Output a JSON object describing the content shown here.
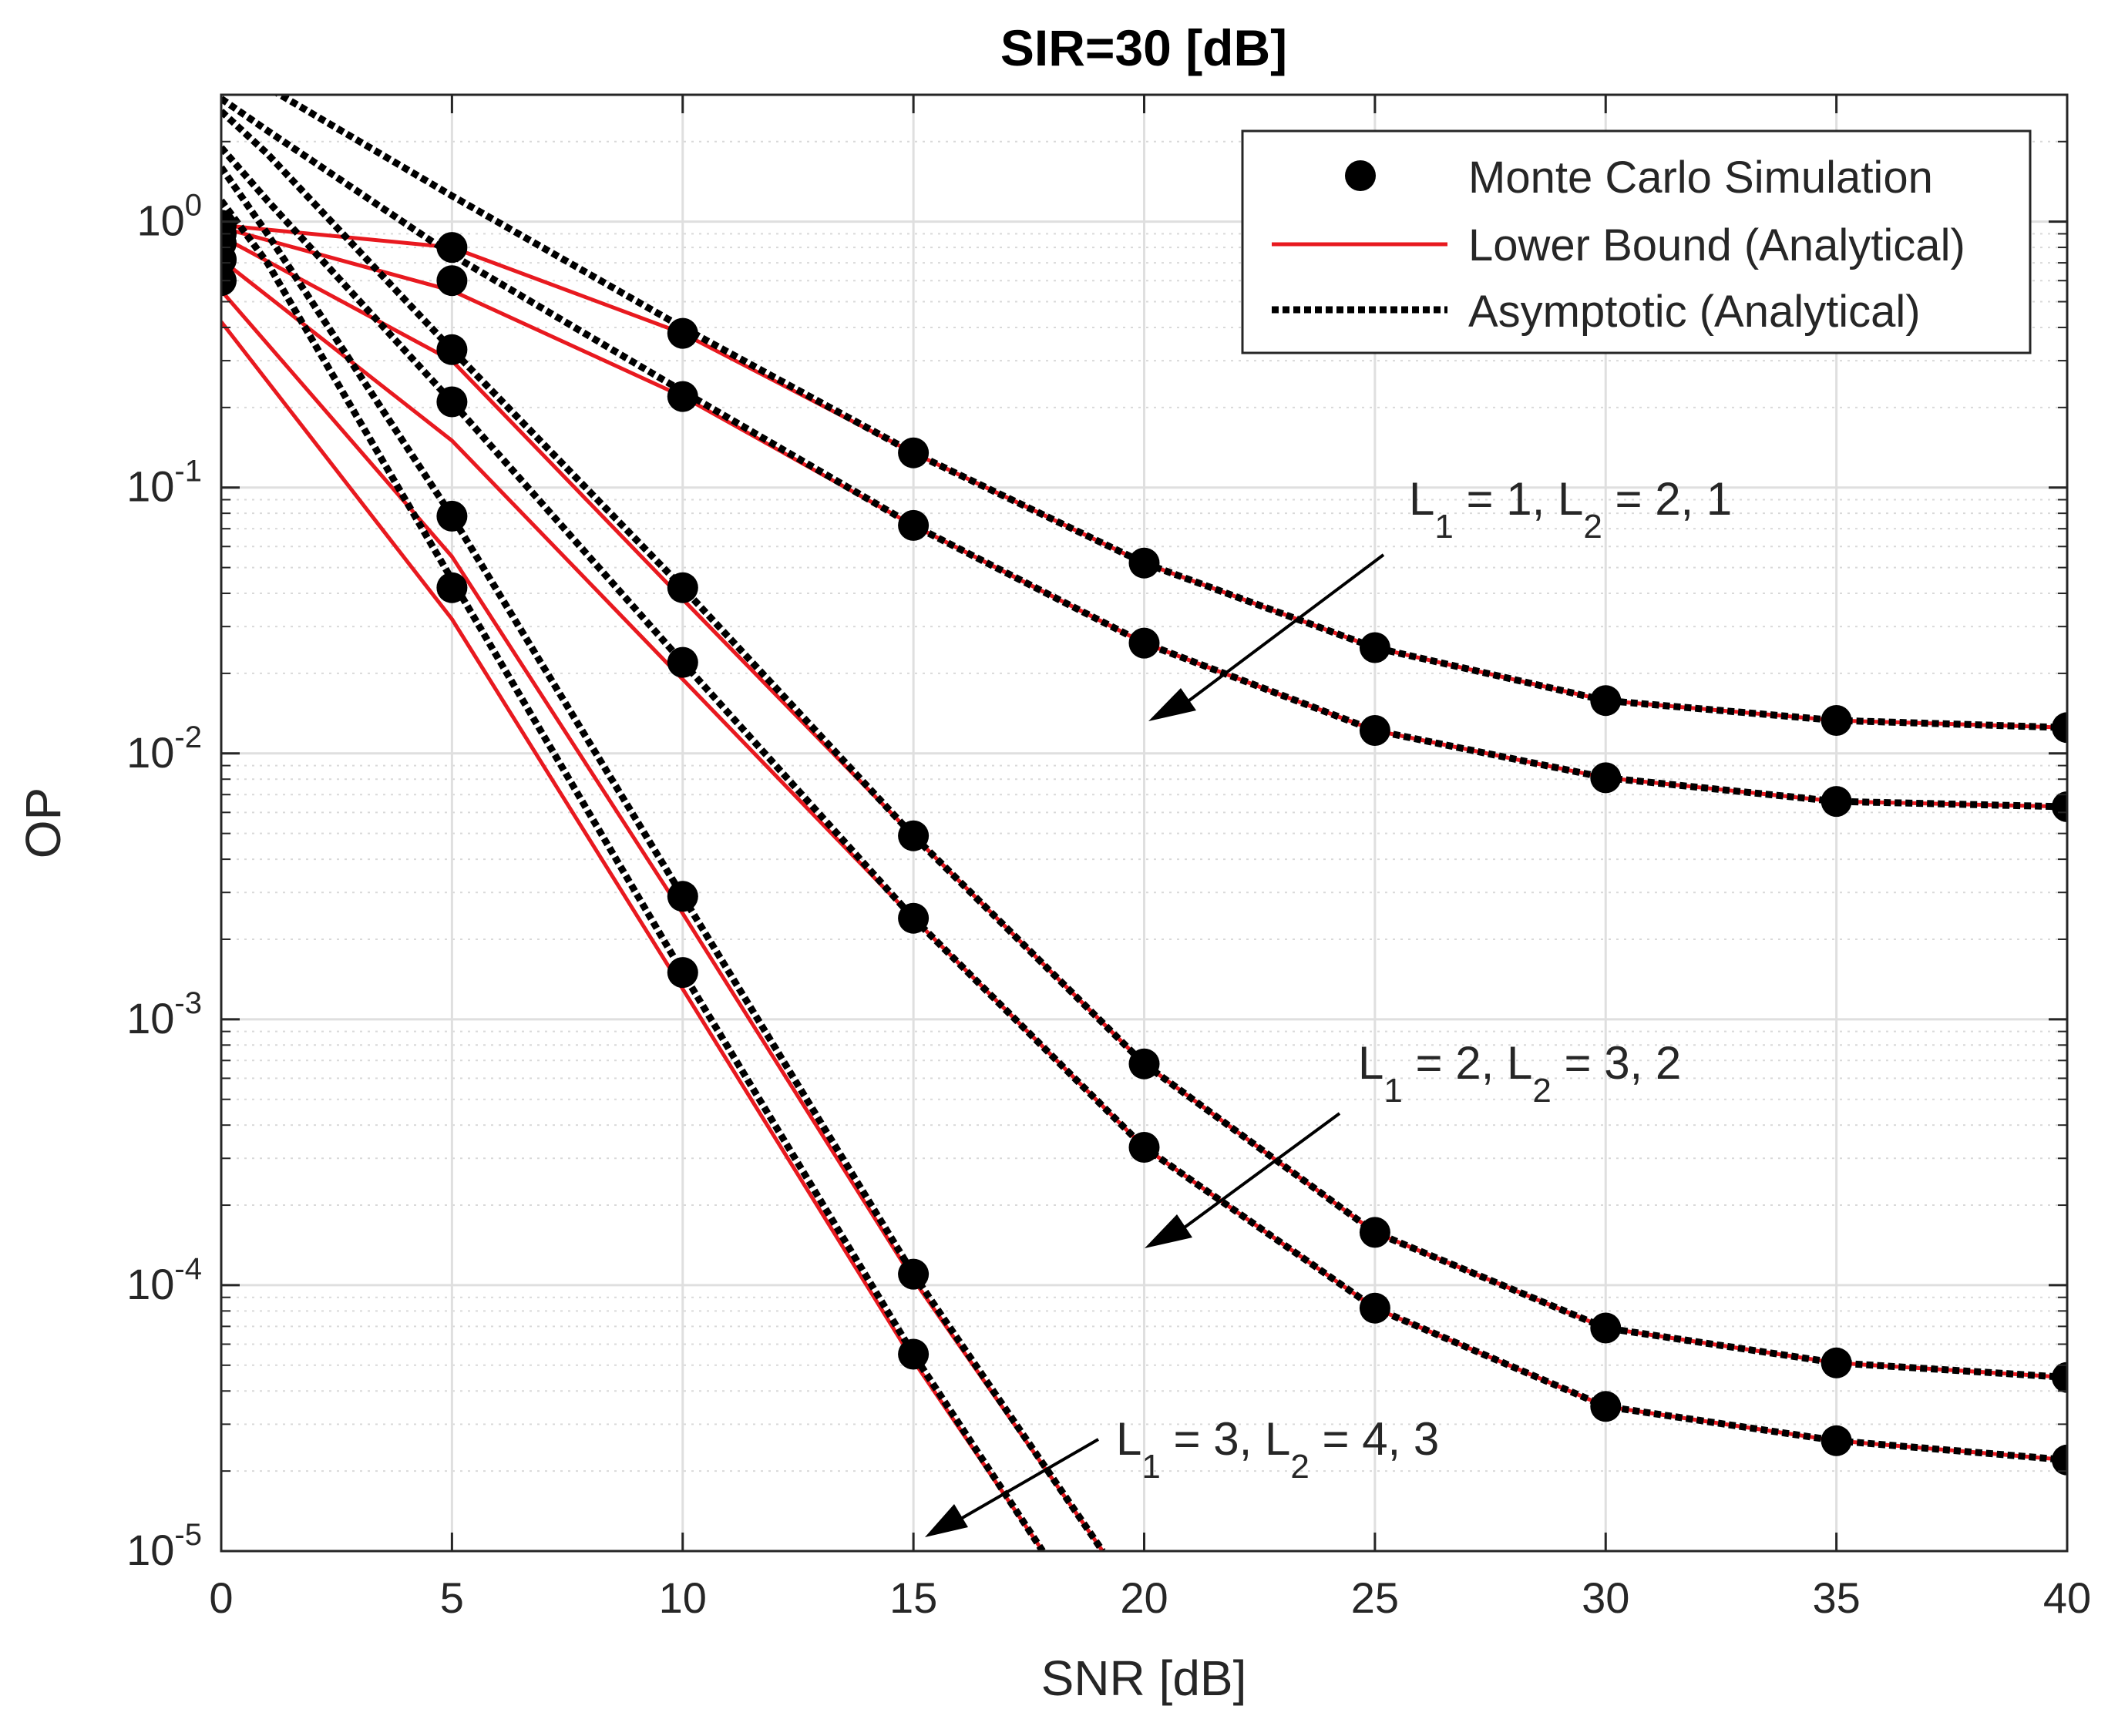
{
  "chart_data": {
    "type": "line",
    "title": "SIR=30 [dB]",
    "xlabel": "SNR [dB]",
    "ylabel": "OP",
    "xlim": [
      0,
      40
    ],
    "ylim": [
      1e-05,
      3
    ],
    "yscale": "log",
    "grid": true,
    "x_ticks": [
      0,
      5,
      10,
      15,
      20,
      25,
      30,
      35,
      40
    ],
    "x_tick_labels": [
      "0",
      "5",
      "10",
      "15",
      "20",
      "25",
      "30",
      "35",
      "40"
    ],
    "y_ticks": [
      {
        "value": 1,
        "base": "10",
        "exp": "0"
      },
      {
        "value": 0.1,
        "base": "10",
        "exp": "-1"
      },
      {
        "value": 0.01,
        "base": "10",
        "exp": "-2"
      },
      {
        "value": 0.001,
        "base": "10",
        "exp": "-3"
      },
      {
        "value": 0.0001,
        "base": "10",
        "exp": "-4"
      },
      {
        "value": 1e-05,
        "base": "10",
        "exp": "-5"
      }
    ],
    "legend": {
      "position": "top-right",
      "entries": [
        {
          "label": "Monte Carlo Simulation",
          "style": "marker",
          "color": "#000000"
        },
        {
          "label": "Lower Bound (Analytical)",
          "style": "solid",
          "color": "#e8191f"
        },
        {
          "label": "Asymptotic (Analytical)",
          "style": "dotted",
          "color": "#000000"
        }
      ]
    },
    "series": [
      {
        "name": "L1=1, L2=2",
        "x": [
          0,
          5,
          10,
          15,
          20,
          25,
          30,
          35,
          40
        ],
        "lower_bound": [
          0.97,
          0.8,
          0.38,
          0.135,
          0.052,
          0.025,
          0.0158,
          0.0133,
          0.0125
        ],
        "asymptotic_x": [
          0,
          1,
          5,
          10,
          15,
          20,
          25,
          30,
          35,
          40
        ],
        "asymptotic": [
          3.6,
          3.2,
          1.25,
          0.4,
          0.135,
          0.052,
          0.025,
          0.0158,
          0.0133,
          0.0125
        ],
        "mc": [
          0.97,
          0.8,
          0.38,
          0.135,
          0.052,
          0.025,
          0.0158,
          0.0133,
          0.0125
        ]
      },
      {
        "name": "L1=1, L2=1",
        "x": [
          0,
          5,
          10,
          15,
          20,
          25,
          30,
          35,
          40
        ],
        "lower_bound": [
          0.95,
          0.55,
          0.22,
          0.072,
          0.026,
          0.0122,
          0.0081,
          0.0066,
          0.0063
        ],
        "asymptotic_x": [
          0,
          1,
          5,
          10,
          15,
          20,
          25,
          30,
          35,
          40
        ],
        "asymptotic": [
          2.9,
          2.2,
          0.75,
          0.23,
          0.072,
          0.026,
          0.0122,
          0.0081,
          0.0066,
          0.0063
        ],
        "mc": [
          0.83,
          0.6,
          0.22,
          0.072,
          0.026,
          0.0122,
          0.0081,
          0.0066,
          0.0063
        ]
      },
      {
        "name": "L1=2, L2=3",
        "x": [
          0,
          5,
          10,
          15,
          20,
          25,
          30,
          35,
          40
        ],
        "lower_bound": [
          0.88,
          0.3,
          0.038,
          0.0049,
          0.00068,
          0.000158,
          6.9e-05,
          5.1e-05,
          4.5e-05
        ],
        "asymptotic_x": [
          0,
          1,
          5,
          10,
          15,
          20,
          25,
          30,
          35,
          40
        ],
        "asymptotic": [
          2.6,
          1.8,
          0.33,
          0.042,
          0.0049,
          0.00068,
          0.000158,
          6.9e-05,
          5.1e-05,
          4.5e-05
        ],
        "mc": [
          0.9,
          0.33,
          0.042,
          0.0049,
          0.00068,
          0.000158,
          6.9e-05,
          5.1e-05,
          4.5e-05
        ]
      },
      {
        "name": "L1=2, L2=2",
        "x": [
          0,
          5,
          10,
          15,
          20,
          25,
          30,
          35,
          40
        ],
        "lower_bound": [
          0.72,
          0.15,
          0.019,
          0.0024,
          0.00033,
          8.2e-05,
          3.5e-05,
          2.6e-05,
          2.2e-05
        ],
        "asymptotic_x": [
          0,
          1,
          5,
          10,
          15,
          20,
          25,
          30,
          35,
          40
        ],
        "asymptotic": [
          1.9,
          1.2,
          0.21,
          0.022,
          0.0024,
          0.00033,
          8.2e-05,
          3.5e-05,
          2.6e-05,
          2.2e-05
        ],
        "mc": [
          0.72,
          0.21,
          0.022,
          0.0024,
          0.00033,
          8.2e-05,
          3.5e-05,
          2.6e-05,
          2.2e-05
        ]
      },
      {
        "name": "L1=3, L2=4",
        "x": [
          0,
          5,
          10,
          15,
          19.1
        ],
        "lower_bound": [
          0.55,
          0.055,
          0.0025,
          0.000105,
          1e-05
        ],
        "asymptotic_x": [
          0,
          1,
          5,
          10,
          15,
          19.1
        ],
        "asymptotic": [
          1.6,
          0.9,
          0.078,
          0.0029,
          0.00011,
          1e-05
        ],
        "mc": [
          0.72,
          0.078,
          0.0029,
          0.00011
        ]
      },
      {
        "name": "L1=3, L2=3",
        "x": [
          0,
          5,
          10,
          15,
          17.8
        ],
        "lower_bound": [
          0.42,
          0.032,
          0.0013,
          5.2e-05,
          1e-05
        ],
        "asymptotic_x": [
          0,
          1,
          5,
          10,
          15,
          17.8
        ],
        "asymptotic": [
          1.2,
          0.7,
          0.045,
          0.0015,
          5.5e-05,
          1e-05
        ],
        "mc": [
          0.6,
          0.042,
          0.0015,
          5.5e-05
        ]
      }
    ],
    "annotations": [
      {
        "L1": "L",
        "s1": "1",
        "mid": " = 1, ",
        "L2": "L",
        "s2": "2",
        "tail": " = 2, 1"
      },
      {
        "L1": "L",
        "s1": "1",
        "mid": " = 2, ",
        "L2": "L",
        "s2": "2",
        "tail": " = 3, 2"
      },
      {
        "L1": "L",
        "s1": "1",
        "mid": " = 3, ",
        "L2": "L",
        "s2": "2",
        "tail": " = 4, 3"
      }
    ],
    "colors": {
      "lower_bound": "#e8191f",
      "asymptotic": "#000000",
      "marker": "#000000",
      "grid": "#dfdfdf",
      "axis": "#262626"
    }
  }
}
